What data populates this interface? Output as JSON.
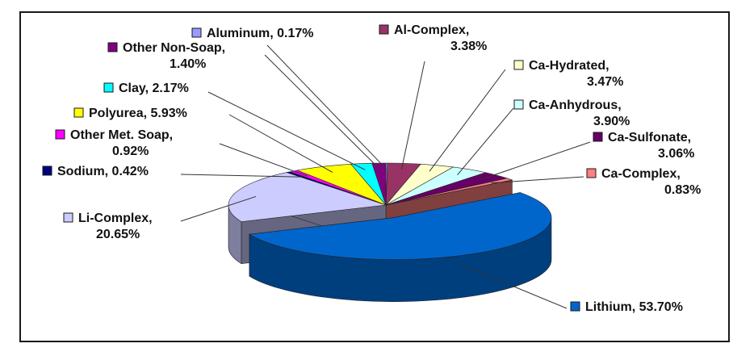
{
  "chart_data": {
    "type": "pie",
    "style": "3d-exploded",
    "legend": "labels-with-leader-lines",
    "slices": [
      {
        "name": "Aluminum",
        "value": 0.17,
        "line1": "Aluminum, 0.17%",
        "line2": "",
        "color": "#9999ff"
      },
      {
        "name": "Al-Complex",
        "value": 3.38,
        "line1": "Al-Complex,",
        "line2": "3.38%",
        "color": "#993366"
      },
      {
        "name": "Ca-Hydrated",
        "value": 3.47,
        "line1": "Ca-Hydrated,",
        "line2": "3.47%",
        "color": "#ffffcc"
      },
      {
        "name": "Ca-Anhydrous",
        "value": 3.9,
        "line1": "Ca-Anhydrous,",
        "line2": "3.90%",
        "color": "#ccffff"
      },
      {
        "name": "Ca-Sulfonate",
        "value": 3.06,
        "line1": "Ca-Sulfonate,",
        "line2": "3.06%",
        "color": "#660066"
      },
      {
        "name": "Ca-Complex",
        "value": 0.83,
        "line1": "Ca-Complex,",
        "line2": "0.83%",
        "color": "#ff8080"
      },
      {
        "name": "Lithium",
        "value": 53.7,
        "line1": "Lithium, 53.70%",
        "line2": "",
        "color": "#0066cc"
      },
      {
        "name": "Li-Complex",
        "value": 20.65,
        "line1": "Li-Complex,",
        "line2": "20.65%",
        "color": "#ccccff"
      },
      {
        "name": "Sodium",
        "value": 0.42,
        "line1": "Sodium, 0.42%",
        "line2": "",
        "color": "#000080"
      },
      {
        "name": "Other Met. Soap",
        "value": 0.92,
        "line1": "Other Met. Soap,",
        "line2": "0.92%",
        "color": "#ff00ff"
      },
      {
        "name": "Polyurea",
        "value": 5.93,
        "line1": "Polyurea, 5.93%",
        "line2": "",
        "color": "#ffff00"
      },
      {
        "name": "Clay",
        "value": 2.17,
        "line1": "Clay, 2.17%",
        "line2": "",
        "color": "#00ffff"
      },
      {
        "name": "Other Non-Soap",
        "value": 1.4,
        "line1": "Other Non-Soap,",
        "line2": "1.40%",
        "color": "#800080"
      }
    ]
  }
}
